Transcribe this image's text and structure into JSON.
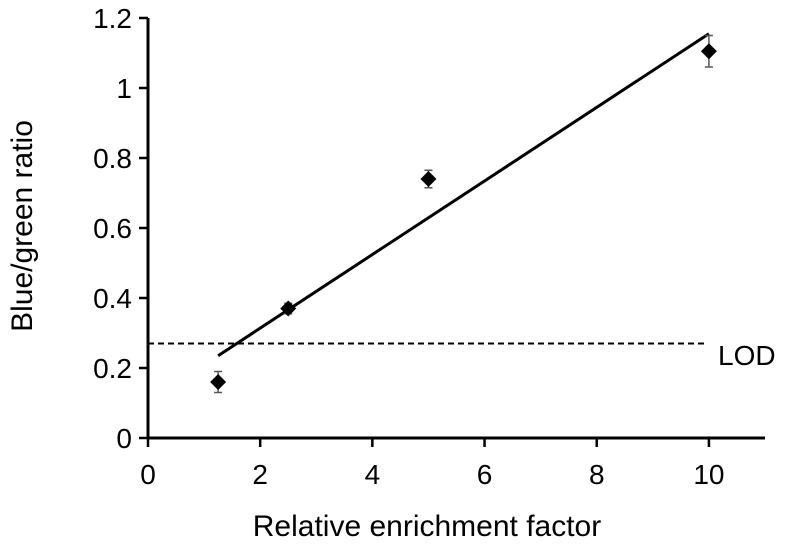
{
  "chart_data": {
    "type": "scatter",
    "title": "",
    "xlabel": "Relative enrichment factor",
    "ylabel": "Blue/green ratio",
    "xlim": [
      0,
      11
    ],
    "ylim": [
      0,
      1.2
    ],
    "x_ticks": [
      0,
      2,
      4,
      6,
      8,
      10
    ],
    "x_tick_labels": [
      "0",
      "2",
      "4",
      "6",
      "8",
      "10"
    ],
    "y_ticks": [
      0,
      0.2,
      0.4,
      0.6,
      0.8,
      1.0,
      1.2
    ],
    "y_tick_labels": [
      "0",
      "0.2",
      "0.4",
      "0.6",
      "0.8",
      "1",
      "1.2"
    ],
    "grid": false,
    "series": [
      {
        "marker": "diamond",
        "color": "#000000",
        "points": [
          {
            "x": 1.25,
            "y": 0.16,
            "err": 0.03
          },
          {
            "x": 2.5,
            "y": 0.37,
            "err": 0.015
          },
          {
            "x": 5,
            "y": 0.74,
            "err": 0.025
          },
          {
            "x": 10,
            "y": 1.105,
            "err": 0.045
          }
        ]
      }
    ],
    "fit_line": {
      "x": [
        1.25,
        10
      ],
      "y": [
        0.235,
        1.155
      ],
      "color": "#000000"
    },
    "threshold_line": {
      "y": 0.27,
      "label": "LOD",
      "style": "dashed",
      "color": "#000000"
    }
  }
}
